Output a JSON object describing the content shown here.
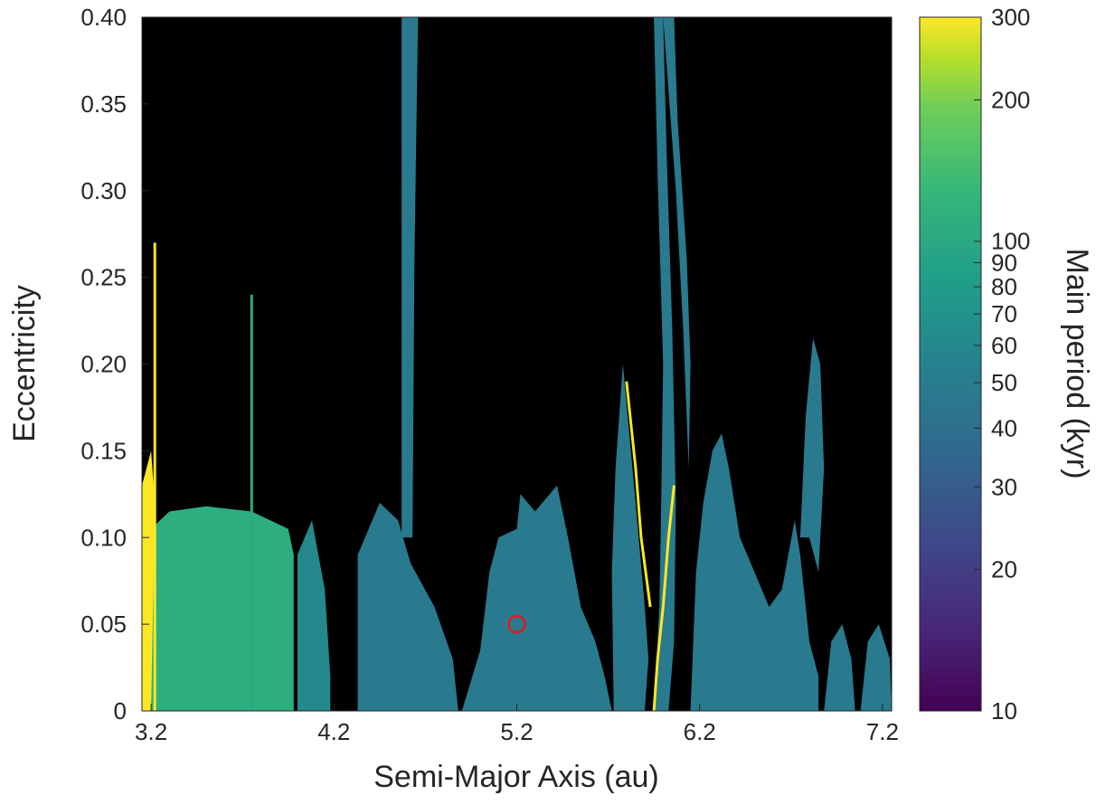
{
  "chart_data": {
    "type": "heatmap",
    "xlabel": "Semi-Major Axis (au)",
    "ylabel": "Eccentricity",
    "colorbar_label": "Main period (kyr)",
    "xlim": [
      3.15,
      7.25
    ],
    "ylim": [
      0,
      0.4
    ],
    "x_ticks": [
      3.2,
      4.2,
      5.2,
      6.2,
      7.2
    ],
    "x_tick_labels": [
      "3.2",
      "4.2",
      "5.2",
      "6.2",
      "7.2"
    ],
    "y_ticks": [
      0,
      0.05,
      0.1,
      0.15,
      0.2,
      0.25,
      0.3,
      0.35,
      0.4
    ],
    "y_tick_labels": [
      "0",
      "0.05",
      "0.10",
      "0.15",
      "0.20",
      "0.25",
      "0.30",
      "0.35",
      "0.40"
    ],
    "colorbar": {
      "scale": "log",
      "range": [
        10,
        300
      ],
      "colormap": "viridis",
      "ticks": [
        10,
        20,
        30,
        40,
        50,
        60,
        70,
        80,
        90,
        100,
        200,
        300
      ],
      "tick_labels": [
        "10",
        "20",
        "30",
        "40",
        "50",
        "60",
        "70",
        "80",
        "90",
        "100",
        "200",
        "300"
      ]
    },
    "background_color": "#000000",
    "marker": {
      "type": "circle",
      "x": 5.2,
      "y": 0.05,
      "color": "#e41a1c"
    },
    "stable_regions": [
      {
        "period_kyr": 110,
        "poly": [
          [
            3.15,
            0
          ],
          [
            3.15,
            0.1
          ],
          [
            3.3,
            0.115
          ],
          [
            3.5,
            0.118
          ],
          [
            3.75,
            0.115
          ],
          [
            3.95,
            0.105
          ],
          [
            3.98,
            0.09
          ],
          [
            3.98,
            0
          ]
        ]
      },
      {
        "period_kyr": 300,
        "poly": [
          [
            3.15,
            0
          ],
          [
            3.15,
            0.13
          ],
          [
            3.2,
            0.15
          ],
          [
            3.22,
            0.12
          ],
          [
            3.2,
            0
          ]
        ]
      },
      {
        "period_kyr": 60,
        "poly": [
          [
            4.0,
            0
          ],
          [
            4.0,
            0.09
          ],
          [
            4.08,
            0.11
          ],
          [
            4.15,
            0.07
          ],
          [
            4.18,
            0.02
          ],
          [
            4.18,
            0
          ]
        ]
      },
      {
        "period_kyr": 48,
        "poly": [
          [
            4.33,
            0
          ],
          [
            4.33,
            0.09
          ],
          [
            4.45,
            0.12
          ],
          [
            4.55,
            0.11
          ],
          [
            4.62,
            0.085
          ],
          [
            4.75,
            0.06
          ],
          [
            4.85,
            0.03
          ],
          [
            4.88,
            0
          ]
        ]
      },
      {
        "period_kyr": 48,
        "poly": [
          [
            4.57,
            0.1
          ],
          [
            4.57,
            0.4
          ],
          [
            4.66,
            0.4
          ],
          [
            4.64,
            0.26
          ],
          [
            4.63,
            0.1
          ]
        ]
      },
      {
        "period_kyr": 48,
        "poly": [
          [
            4.9,
            0
          ],
          [
            5.0,
            0.035
          ],
          [
            5.05,
            0.08
          ],
          [
            5.1,
            0.1
          ],
          [
            5.2,
            0.105
          ],
          [
            5.22,
            0.125
          ],
          [
            5.3,
            0.115
          ],
          [
            5.42,
            0.13
          ],
          [
            5.48,
            0.1
          ],
          [
            5.55,
            0.06
          ],
          [
            5.63,
            0.04
          ],
          [
            5.68,
            0.02
          ],
          [
            5.72,
            0
          ]
        ]
      },
      {
        "period_kyr": 48,
        "poly": [
          [
            5.73,
            0
          ],
          [
            5.72,
            0.08
          ],
          [
            5.74,
            0.14
          ],
          [
            5.78,
            0.2
          ],
          [
            5.85,
            0.12
          ],
          [
            5.9,
            0.06
          ],
          [
            5.92,
            0.03
          ],
          [
            5.9,
            0
          ]
        ]
      },
      {
        "period_kyr": 48,
        "poly": [
          [
            5.95,
            0.0
          ],
          [
            5.98,
            0.06
          ],
          [
            5.99,
            0.12
          ],
          [
            6.0,
            0.2
          ],
          [
            5.97,
            0.31
          ],
          [
            5.95,
            0.4
          ],
          [
            6.0,
            0.4
          ],
          [
            6.02,
            0.32
          ],
          [
            6.05,
            0.22
          ],
          [
            6.07,
            0.12
          ],
          [
            6.06,
            0.04
          ],
          [
            6.03,
            0.0
          ]
        ]
      },
      {
        "period_kyr": 48,
        "poly": [
          [
            6.0,
            0.4
          ],
          [
            6.06,
            0.4
          ],
          [
            6.08,
            0.34
          ],
          [
            6.13,
            0.26
          ],
          [
            6.15,
            0.2
          ],
          [
            6.14,
            0.14
          ],
          [
            6.11,
            0.22
          ],
          [
            6.07,
            0.3
          ]
        ]
      },
      {
        "period_kyr": 48,
        "poly": [
          [
            6.15,
            0
          ],
          [
            6.18,
            0.08
          ],
          [
            6.22,
            0.12
          ],
          [
            6.27,
            0.15
          ],
          [
            6.32,
            0.16
          ],
          [
            6.36,
            0.14
          ],
          [
            6.42,
            0.1
          ],
          [
            6.5,
            0.08
          ],
          [
            6.58,
            0.06
          ],
          [
            6.65,
            0.07
          ],
          [
            6.72,
            0.11
          ],
          [
            6.75,
            0.09
          ],
          [
            6.8,
            0.04
          ],
          [
            6.85,
            0.02
          ],
          [
            6.85,
            0
          ]
        ]
      },
      {
        "period_kyr": 48,
        "poly": [
          [
            6.75,
            0.1
          ],
          [
            6.78,
            0.17
          ],
          [
            6.82,
            0.215
          ],
          [
            6.86,
            0.2
          ],
          [
            6.88,
            0.14
          ],
          [
            6.85,
            0.08
          ],
          [
            6.8,
            0.1
          ]
        ]
      },
      {
        "period_kyr": 48,
        "poly": [
          [
            6.88,
            0
          ],
          [
            6.92,
            0.04
          ],
          [
            6.98,
            0.05
          ],
          [
            7.03,
            0.03
          ],
          [
            7.05,
            0
          ]
        ]
      },
      {
        "period_kyr": 48,
        "poly": [
          [
            7.08,
            0
          ],
          [
            7.12,
            0.04
          ],
          [
            7.18,
            0.05
          ],
          [
            7.24,
            0.03
          ],
          [
            7.25,
            0
          ]
        ]
      }
    ],
    "resonance_lines": [
      {
        "period_kyr": 300,
        "points": [
          [
            3.22,
            0.0
          ],
          [
            3.22,
            0.27
          ]
        ]
      },
      {
        "period_kyr": 300,
        "points": [
          [
            5.8,
            0.19
          ],
          [
            5.85,
            0.14
          ],
          [
            5.88,
            0.1
          ],
          [
            5.93,
            0.06
          ]
        ]
      },
      {
        "period_kyr": 300,
        "points": [
          [
            5.95,
            0.0
          ],
          [
            5.97,
            0.03
          ],
          [
            6.0,
            0.06
          ],
          [
            6.03,
            0.1
          ],
          [
            6.06,
            0.13
          ]
        ]
      },
      {
        "period_kyr": 100,
        "points": [
          [
            3.75,
            0.0
          ],
          [
            3.75,
            0.24
          ]
        ]
      }
    ]
  }
}
